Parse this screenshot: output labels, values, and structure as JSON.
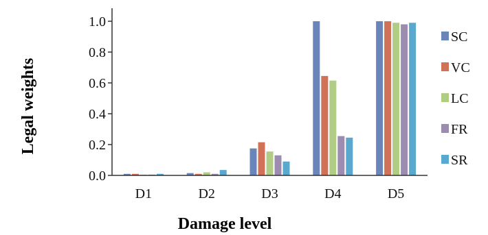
{
  "chart_data": {
    "type": "bar",
    "title": "",
    "xlabel": "Damage level",
    "ylabel": "Legal weights",
    "categories": [
      "D1",
      "D2",
      "D3",
      "D4",
      "D5"
    ],
    "ylim": [
      0.0,
      1.0
    ],
    "yticks": [
      "0.0",
      "0.2",
      "0.4",
      "0.6",
      "0.8",
      "1.0"
    ],
    "grid": false,
    "legend_position": "right",
    "series": [
      {
        "name": "SC",
        "color": "#6a86b8",
        "values": [
          0.01,
          0.015,
          0.175,
          1.0,
          1.0
        ]
      },
      {
        "name": "VC",
        "color": "#d07258",
        "values": [
          0.01,
          0.01,
          0.215,
          0.645,
          1.0
        ]
      },
      {
        "name": "LC",
        "color": "#b1cc84",
        "values": [
          0.005,
          0.02,
          0.155,
          0.615,
          0.99
        ]
      },
      {
        "name": "FR",
        "color": "#9c8cb0",
        "values": [
          0.005,
          0.01,
          0.13,
          0.255,
          0.98
        ]
      },
      {
        "name": "SR",
        "color": "#5ba8ce",
        "values": [
          0.01,
          0.035,
          0.09,
          0.245,
          0.99
        ]
      }
    ]
  }
}
